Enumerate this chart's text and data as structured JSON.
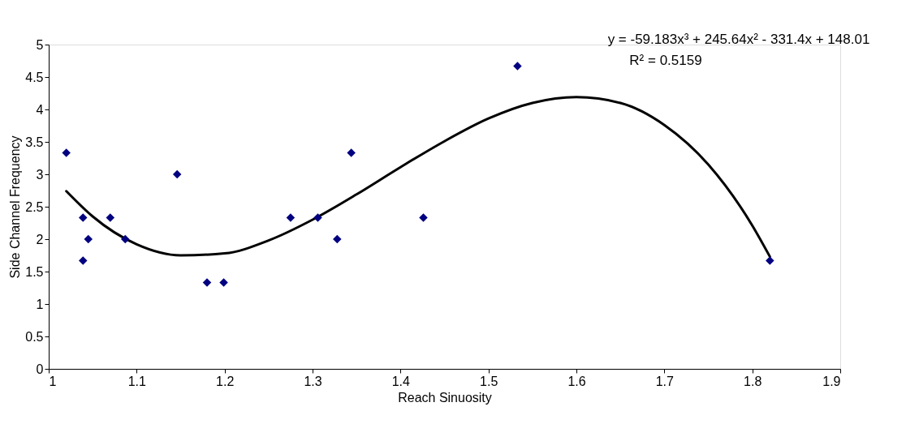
{
  "chart_data": {
    "type": "scatter",
    "xlabel": "Reach Sinuosity",
    "ylabel": "Side Channel Frequency",
    "xlim": [
      1,
      1.9
    ],
    "xticks": [
      1,
      1.1,
      1.2,
      1.3,
      1.4,
      1.5,
      1.6,
      1.7,
      1.8,
      1.9
    ],
    "ylim": [
      0,
      5
    ],
    "yticks": [
      0,
      0.5,
      1,
      1.5,
      2,
      2.5,
      3,
      3.5,
      4,
      4.5,
      5
    ],
    "grid": false,
    "annotations": [
      "y = -59.183x³ + 245.64x² - 331.4x + 148.01",
      "R² = 0.5159"
    ],
    "series": [
      {
        "marker": "diamond",
        "color": "#000080",
        "x": [
          1.02,
          1.039,
          1.039,
          1.045,
          1.07,
          1.087,
          1.146,
          1.18,
          1.199,
          1.275,
          1.306,
          1.328,
          1.344,
          1.426,
          1.533,
          1.82
        ],
        "values": [
          3.33,
          2.33,
          1.67,
          2.0,
          2.33,
          2.0,
          3.0,
          1.33,
          1.33,
          2.33,
          2.33,
          2.0,
          3.33,
          2.33,
          4.67,
          1.67
        ]
      },
      {
        "type": "line",
        "marker": "none",
        "color": "#000000",
        "line_style": "solid",
        "x": [
          1.02,
          1.05,
          1.1,
          1.15,
          1.2,
          1.25,
          1.3,
          1.35,
          1.4,
          1.45,
          1.5,
          1.55,
          1.6,
          1.65,
          1.7,
          1.75,
          1.8,
          1.82
        ],
        "values": [
          2.74,
          2.35,
          1.92,
          1.75,
          1.78,
          1.98,
          2.3,
          2.69,
          3.11,
          3.51,
          3.86,
          4.1,
          4.19,
          4.1,
          3.76,
          3.15,
          2.21,
          1.73
        ]
      }
    ]
  }
}
